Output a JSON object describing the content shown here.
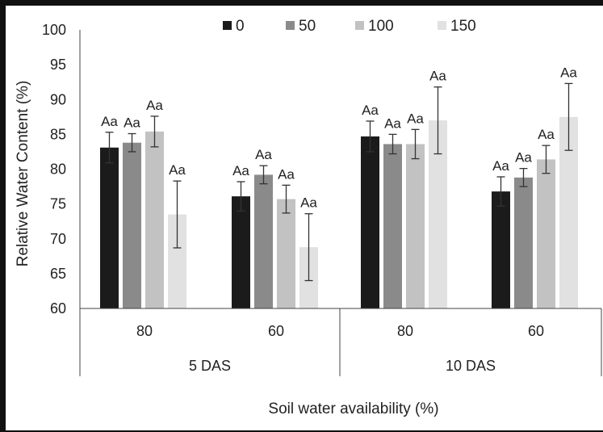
{
  "chart_data": {
    "type": "bar",
    "title": "",
    "ylabel": "Relative Water Content (%)",
    "xlabel": "Soil water availability (%)",
    "ylim": [
      60,
      100
    ],
    "yticks": [
      60,
      65,
      70,
      75,
      80,
      85,
      90,
      95,
      100
    ],
    "grid": false,
    "legend_position": "top",
    "groups": [
      {
        "label": "5 DAS",
        "categories": [
          "80",
          "60"
        ]
      },
      {
        "label": "10 DAS",
        "categories": [
          "80",
          "60"
        ]
      }
    ],
    "categories": [
      "80",
      "60",
      "80",
      "60"
    ],
    "series": [
      {
        "name": "0",
        "color": "#1b1b1b",
        "values": [
          83.1,
          76.1,
          84.7,
          76.8
        ],
        "errors": [
          2.2,
          2.1,
          2.2,
          2.1
        ],
        "labels": [
          "Aa",
          "Aa",
          "Aa",
          "Aa"
        ]
      },
      {
        "name": "50",
        "color": "#8a8a8a",
        "values": [
          83.8,
          79.2,
          83.6,
          78.8
        ],
        "errors": [
          1.3,
          1.3,
          1.4,
          1.3
        ],
        "labels": [
          "Aa",
          "Aa",
          "Aa",
          "Aa"
        ]
      },
      {
        "name": "100",
        "color": "#c2c2c2",
        "values": [
          85.4,
          75.7,
          83.6,
          81.4
        ],
        "errors": [
          2.2,
          2.0,
          2.1,
          2.0
        ],
        "labels": [
          "Aa",
          "Aa",
          "Aa",
          "Aa"
        ]
      },
      {
        "name": "150",
        "color": "#e1e1e1",
        "values": [
          73.5,
          68.8,
          87.0,
          87.5
        ],
        "errors": [
          4.8,
          4.8,
          4.8,
          4.8
        ],
        "labels": [
          "Aa",
          "Aa",
          "Aa",
          "Aa"
        ]
      }
    ]
  }
}
